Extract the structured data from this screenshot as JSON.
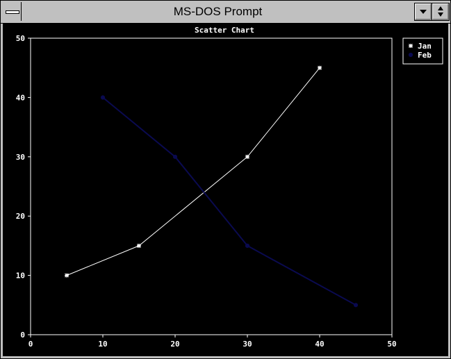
{
  "window": {
    "title": "MS-DOS Prompt",
    "system_menu_icon": "system-menu-icon",
    "minimize_icon": "triangle-down-icon",
    "restore_icon": "up-down-arrows-icon"
  },
  "colors": {
    "frame": "#c0c0c0",
    "client_bg": "#000000",
    "jan": "#ffffff",
    "feb": "#0a0a50"
  },
  "chart_data": {
    "type": "scatter",
    "title": "Scatter Chart",
    "xlim": [
      0,
      50
    ],
    "ylim": [
      0,
      50
    ],
    "xticks": [
      0,
      10,
      20,
      30,
      40,
      50
    ],
    "yticks": [
      0,
      10,
      20,
      30,
      40,
      50
    ],
    "legend_placement": "top-right",
    "series": [
      {
        "name": "Jan",
        "marker": "*",
        "points": [
          [
            5,
            10
          ],
          [
            15,
            15
          ],
          [
            30,
            30
          ],
          [
            40,
            45
          ]
        ]
      },
      {
        "name": "Feb",
        "marker": "o",
        "points": [
          [
            10,
            40
          ],
          [
            20,
            30
          ],
          [
            30,
            15
          ],
          [
            45,
            5
          ]
        ]
      }
    ]
  }
}
